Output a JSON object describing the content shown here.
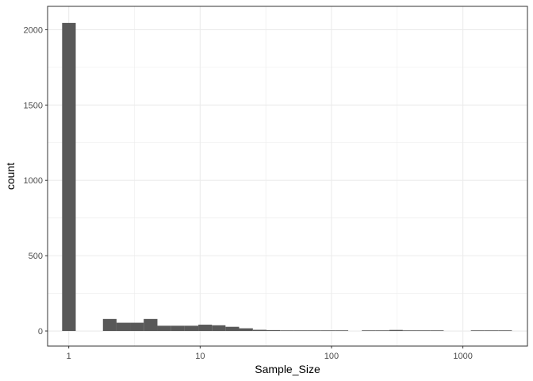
{
  "chart_data": {
    "type": "bar",
    "xlabel": "Sample_Size",
    "ylabel": "count",
    "x_scale": "log10",
    "xlim": [
      0.69,
      3100
    ],
    "ylim": [
      -100,
      2155
    ],
    "x_ticks": [
      {
        "value": 1,
        "label": "1"
      },
      {
        "value": 10,
        "label": "10"
      },
      {
        "value": 100,
        "label": "100"
      },
      {
        "value": 1000,
        "label": "1000"
      }
    ],
    "y_ticks": [
      {
        "value": 0,
        "label": "0"
      },
      {
        "value": 500,
        "label": "500"
      },
      {
        "value": 1000,
        "label": "1000"
      },
      {
        "value": 1500,
        "label": "1500"
      },
      {
        "value": 2000,
        "label": "2000"
      }
    ],
    "bins": [
      {
        "x0": 0.89,
        "x1": 1.13,
        "count": 2045
      },
      {
        "x0": 1.13,
        "x1": 1.43,
        "count": 0
      },
      {
        "x0": 1.43,
        "x1": 1.82,
        "count": 0
      },
      {
        "x0": 1.82,
        "x1": 2.31,
        "count": 80
      },
      {
        "x0": 2.31,
        "x1": 2.93,
        "count": 55
      },
      {
        "x0": 2.93,
        "x1": 3.72,
        "count": 55
      },
      {
        "x0": 3.72,
        "x1": 4.73,
        "count": 80
      },
      {
        "x0": 4.73,
        "x1": 6.01,
        "count": 35
      },
      {
        "x0": 6.01,
        "x1": 7.63,
        "count": 35
      },
      {
        "x0": 7.63,
        "x1": 9.69,
        "count": 35
      },
      {
        "x0": 9.69,
        "x1": 12.3,
        "count": 42
      },
      {
        "x0": 12.3,
        "x1": 15.6,
        "count": 38
      },
      {
        "x0": 15.6,
        "x1": 19.8,
        "count": 28
      },
      {
        "x0": 19.8,
        "x1": 25.2,
        "count": 18
      },
      {
        "x0": 25.2,
        "x1": 32.0,
        "count": 8
      },
      {
        "x0": 32.0,
        "x1": 40.6,
        "count": 6
      },
      {
        "x0": 40.6,
        "x1": 51.6,
        "count": 4
      },
      {
        "x0": 51.6,
        "x1": 65.5,
        "count": 4
      },
      {
        "x0": 65.5,
        "x1": 83.2,
        "count": 4
      },
      {
        "x0": 83.2,
        "x1": 106,
        "count": 3
      },
      {
        "x0": 106,
        "x1": 134,
        "count": 3
      },
      {
        "x0": 134,
        "x1": 170,
        "count": 0
      },
      {
        "x0": 170,
        "x1": 216,
        "count": 3
      },
      {
        "x0": 216,
        "x1": 275,
        "count": 3
      },
      {
        "x0": 275,
        "x1": 349,
        "count": 7
      },
      {
        "x0": 349,
        "x1": 443,
        "count": 3
      },
      {
        "x0": 443,
        "x1": 563,
        "count": 3
      },
      {
        "x0": 563,
        "x1": 714,
        "count": 3
      },
      {
        "x0": 714,
        "x1": 907,
        "count": 0
      },
      {
        "x0": 907,
        "x1": 1150,
        "count": 0
      },
      {
        "x0": 1150,
        "x1": 1460,
        "count": 3
      },
      {
        "x0": 1460,
        "x1": 1860,
        "count": 3
      },
      {
        "x0": 1860,
        "x1": 2360,
        "count": 3
      }
    ],
    "bar_color": "#595959",
    "grid": true,
    "grid_color": "#ebebeb",
    "panel_border_color": "#333333",
    "background": "#ffffff"
  }
}
